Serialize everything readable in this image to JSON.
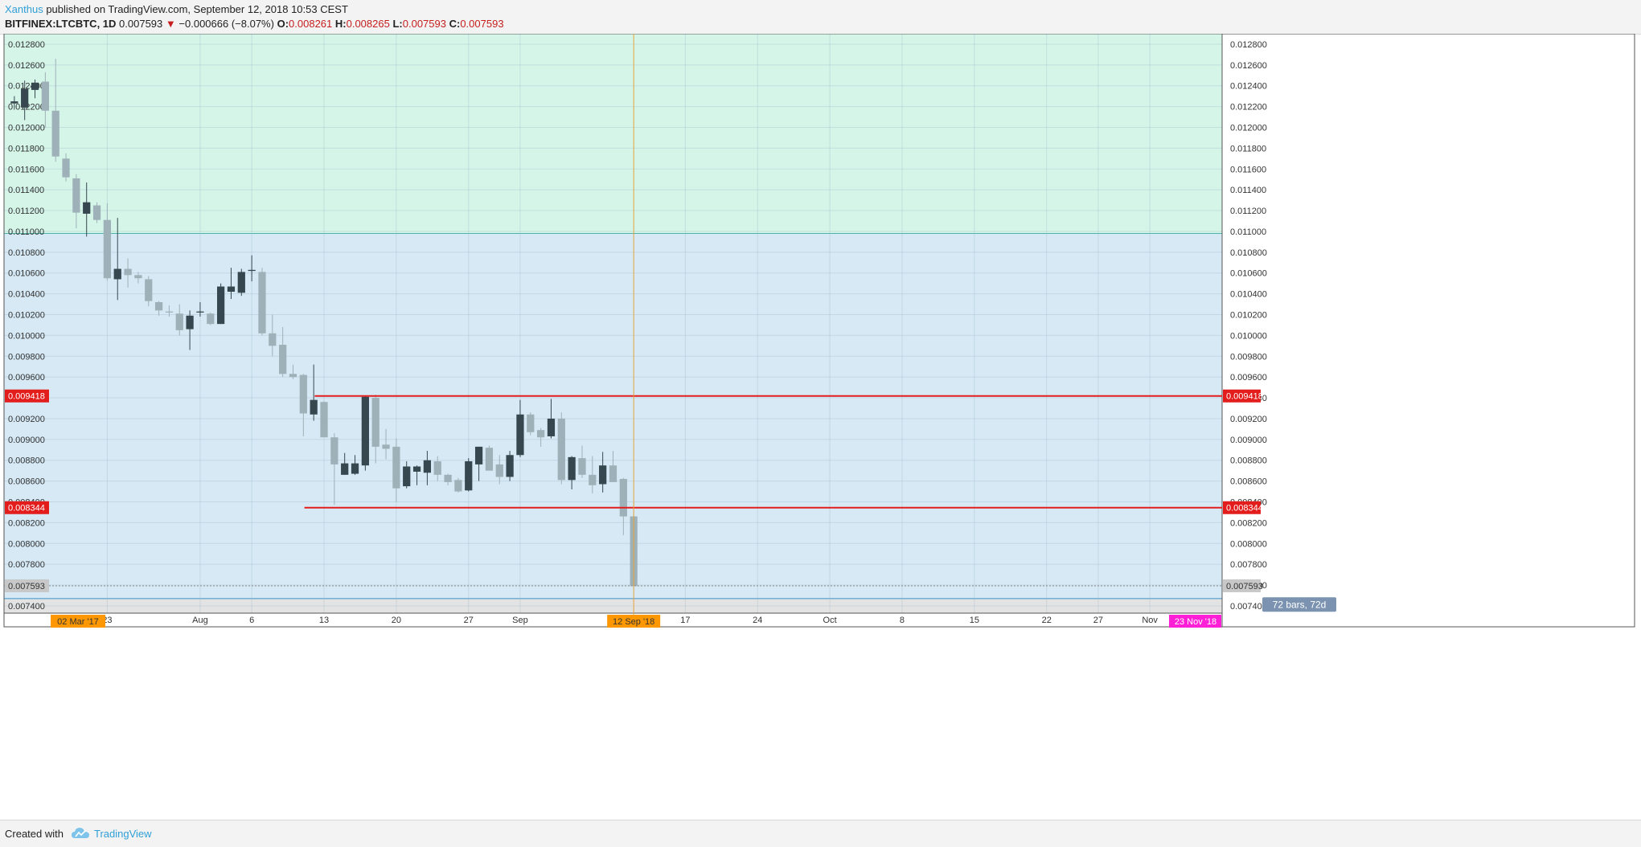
{
  "header": {
    "author": "Xanthus",
    "published_text": "published on TradingView.com, September 12, 2018 10:53 CEST",
    "symbol": "BITFINEX:LTCBTC, 1D",
    "last": "0.007593",
    "change_arrow": "▼",
    "change": "−0.000666 (−8.07%)",
    "o_label": "O:",
    "o_value": "0.008261",
    "h_label": "H:",
    "h_value": "0.008265",
    "l_label": "L:",
    "l_value": "0.007593",
    "c_label": "C:",
    "c_value": "0.007593"
  },
  "footer": {
    "created_with": "Created with",
    "brand": "TradingView"
  },
  "colors": {
    "up_body": "#37474f",
    "down_body": "#9fb1b8",
    "green_zone": "#d4f5e8",
    "blue_zone": "#d6e9f5",
    "gray_zone": "#e3e3e3",
    "level_line": "#e31c1c",
    "vertical_line": "#e6a33c",
    "date_badge": "#ff9800",
    "end_badge": "#ff1fd6",
    "range_badge": "#7b93b0"
  },
  "chart_data": {
    "type": "candlestick",
    "symbol": "BITFINEX:LTCBTC",
    "interval": "1D",
    "y_ticks": [
      "0.012800",
      "0.012600",
      "0.012400",
      "0.012200",
      "0.012000",
      "0.011800",
      "0.011600",
      "0.011400",
      "0.011200",
      "0.011000",
      "0.010800",
      "0.010600",
      "0.010400",
      "0.010200",
      "0.010000",
      "0.009800",
      "0.009600",
      "0.009400",
      "0.009200",
      "0.009000",
      "0.008800",
      "0.008600",
      "0.008400",
      "0.008200",
      "0.008000",
      "0.007800",
      "0.007600",
      "0.007400"
    ],
    "ylim": [
      0.00733,
      0.0129
    ],
    "x_ticks": [
      {
        "label": "23",
        "index": 9
      },
      {
        "label": "Aug",
        "index": 18
      },
      {
        "label": "6",
        "index": 23
      },
      {
        "label": "13",
        "index": 30
      },
      {
        "label": "20",
        "index": 37
      },
      {
        "label": "27",
        "index": 44
      },
      {
        "label": "Sep",
        "index": 49
      },
      {
        "label": "17",
        "index": 65
      },
      {
        "label": "24",
        "index": 72
      },
      {
        "label": "Oct",
        "index": 79
      },
      {
        "label": "8",
        "index": 86
      },
      {
        "label": "15",
        "index": 93
      },
      {
        "label": "22",
        "index": 100
      },
      {
        "label": "27",
        "index": 105
      },
      {
        "label": "Nov",
        "index": 110
      }
    ],
    "x_start_label": "02 Mar '17",
    "current_date_label": "12 Sep '18",
    "x_end_label": "23 Nov '18",
    "visible_bar_range": [
      -1,
      117
    ],
    "candles": [
      {
        "o": 0.01223,
        "h": 0.0123,
        "l": 0.01218,
        "c": 0.01225
      },
      {
        "o": 0.01219,
        "h": 0.01245,
        "l": 0.01207,
        "c": 0.01237
      },
      {
        "o": 0.01236,
        "h": 0.01246,
        "l": 0.01228,
        "c": 0.01243
      },
      {
        "o": 0.01244,
        "h": 0.01253,
        "l": 0.012,
        "c": 0.01216
      },
      {
        "o": 0.01216,
        "h": 0.01266,
        "l": 0.01167,
        "c": 0.01172
      },
      {
        "o": 0.0117,
        "h": 0.01175,
        "l": 0.01148,
        "c": 0.01152
      },
      {
        "o": 0.01151,
        "h": 0.01155,
        "l": 0.01103,
        "c": 0.01118
      },
      {
        "o": 0.01117,
        "h": 0.01147,
        "l": 0.01095,
        "c": 0.01128
      },
      {
        "o": 0.01125,
        "h": 0.01128,
        "l": 0.01108,
        "c": 0.01111
      },
      {
        "o": 0.01111,
        "h": 0.01127,
        "l": 0.01053,
        "c": 0.01055
      },
      {
        "o": 0.01054,
        "h": 0.01113,
        "l": 0.01034,
        "c": 0.01064
      },
      {
        "o": 0.01064,
        "h": 0.01074,
        "l": 0.01046,
        "c": 0.01058
      },
      {
        "o": 0.01058,
        "h": 0.01061,
        "l": 0.0105,
        "c": 0.01055
      },
      {
        "o": 0.01054,
        "h": 0.01057,
        "l": 0.01028,
        "c": 0.01033
      },
      {
        "o": 0.01032,
        "h": 0.01033,
        "l": 0.01019,
        "c": 0.01024
      },
      {
        "o": 0.01023,
        "h": 0.01029,
        "l": 0.01018,
        "c": 0.01022
      },
      {
        "o": 0.01021,
        "h": 0.0103,
        "l": 0.01,
        "c": 0.01005
      },
      {
        "o": 0.01006,
        "h": 0.01024,
        "l": 0.00986,
        "c": 0.01019
      },
      {
        "o": 0.01022,
        "h": 0.01032,
        "l": 0.01018,
        "c": 0.01023
      },
      {
        "o": 0.01021,
        "h": 0.01022,
        "l": 0.0101,
        "c": 0.01011
      },
      {
        "o": 0.01011,
        "h": 0.0105,
        "l": 0.01011,
        "c": 0.01047
      },
      {
        "o": 0.01042,
        "h": 0.01065,
        "l": 0.01035,
        "c": 0.01047
      },
      {
        "o": 0.01041,
        "h": 0.01064,
        "l": 0.01038,
        "c": 0.01061
      },
      {
        "o": 0.01062,
        "h": 0.01077,
        "l": 0.01052,
        "c": 0.01063
      },
      {
        "o": 0.01061,
        "h": 0.01065,
        "l": 0.01,
        "c": 0.01002
      },
      {
        "o": 0.01002,
        "h": 0.0102,
        "l": 0.0098,
        "c": 0.0099
      },
      {
        "o": 0.00991,
        "h": 0.01008,
        "l": 0.0096,
        "c": 0.00963
      },
      {
        "o": 0.00963,
        "h": 0.00972,
        "l": 0.00958,
        "c": 0.0096
      },
      {
        "o": 0.00962,
        "h": 0.00963,
        "l": 0.00903,
        "c": 0.00925
      },
      {
        "o": 0.00924,
        "h": 0.00972,
        "l": 0.00918,
        "c": 0.00938
      },
      {
        "o": 0.00936,
        "h": 0.00937,
        "l": 0.00905,
        "c": 0.00902
      },
      {
        "o": 0.00902,
        "h": 0.00906,
        "l": 0.00837,
        "c": 0.00876
      },
      {
        "o": 0.00866,
        "h": 0.00887,
        "l": 0.00866,
        "c": 0.00877
      },
      {
        "o": 0.00867,
        "h": 0.00885,
        "l": 0.00866,
        "c": 0.00877
      },
      {
        "o": 0.00875,
        "h": 0.00942,
        "l": 0.0087,
        "c": 0.00941
      },
      {
        "o": 0.0094,
        "h": 0.00943,
        "l": 0.00877,
        "c": 0.00893
      },
      {
        "o": 0.00895,
        "h": 0.0091,
        "l": 0.00881,
        "c": 0.00891
      },
      {
        "o": 0.00893,
        "h": 0.00901,
        "l": 0.0084,
        "c": 0.00853
      },
      {
        "o": 0.00855,
        "h": 0.00879,
        "l": 0.00853,
        "c": 0.00874
      },
      {
        "o": 0.00869,
        "h": 0.00875,
        "l": 0.00856,
        "c": 0.00874
      },
      {
        "o": 0.00868,
        "h": 0.00889,
        "l": 0.00856,
        "c": 0.0088
      },
      {
        "o": 0.00879,
        "h": 0.00884,
        "l": 0.0086,
        "c": 0.00866
      },
      {
        "o": 0.00866,
        "h": 0.00867,
        "l": 0.00856,
        "c": 0.00859
      },
      {
        "o": 0.00861,
        "h": 0.00863,
        "l": 0.00849,
        "c": 0.0085
      },
      {
        "o": 0.00851,
        "h": 0.00882,
        "l": 0.0085,
        "c": 0.00879
      },
      {
        "o": 0.00876,
        "h": 0.00893,
        "l": 0.0086,
        "c": 0.00893
      },
      {
        "o": 0.00892,
        "h": 0.00894,
        "l": 0.0087,
        "c": 0.0087
      },
      {
        "o": 0.00876,
        "h": 0.00885,
        "l": 0.00857,
        "c": 0.00864
      },
      {
        "o": 0.00864,
        "h": 0.00889,
        "l": 0.0086,
        "c": 0.00885
      },
      {
        "o": 0.00885,
        "h": 0.00938,
        "l": 0.00883,
        "c": 0.00924
      },
      {
        "o": 0.00924,
        "h": 0.00926,
        "l": 0.00904,
        "c": 0.00907
      },
      {
        "o": 0.00909,
        "h": 0.00911,
        "l": 0.00893,
        "c": 0.00902
      },
      {
        "o": 0.00903,
        "h": 0.00939,
        "l": 0.00901,
        "c": 0.0092
      },
      {
        "o": 0.0092,
        "h": 0.00926,
        "l": 0.00857,
        "c": 0.00861
      },
      {
        "o": 0.00861,
        "h": 0.00884,
        "l": 0.00852,
        "c": 0.00883
      },
      {
        "o": 0.00882,
        "h": 0.00894,
        "l": 0.00863,
        "c": 0.00866
      },
      {
        "o": 0.00866,
        "h": 0.00884,
        "l": 0.00848,
        "c": 0.00856
      },
      {
        "o": 0.00857,
        "h": 0.00888,
        "l": 0.00849,
        "c": 0.00875
      },
      {
        "o": 0.00875,
        "h": 0.00889,
        "l": 0.0086,
        "c": 0.00859
      },
      {
        "o": 0.00862,
        "h": 0.00863,
        "l": 0.00808,
        "c": 0.00826
      },
      {
        "o": 0.00826,
        "h": 0.00827,
        "l": 0.00759,
        "c": 0.00759
      }
    ],
    "levels": [
      {
        "value": 0.009418,
        "label": "0.009418",
        "from_index": 29.1
      },
      {
        "value": 0.008344,
        "label": "0.008344",
        "from_index": 28.1
      }
    ],
    "last_price": {
      "value": 0.007593,
      "label": "0.007593"
    },
    "zones": [
      {
        "name": "green",
        "from": 0.01098,
        "to": 0.0129
      },
      {
        "name": "blue",
        "from": 0.00747,
        "to": 0.01098
      },
      {
        "name": "gray",
        "from": 0.00733,
        "to": 0.00747
      }
    ],
    "current_bar_index": 60,
    "range_label": "72 bars, 72d"
  }
}
